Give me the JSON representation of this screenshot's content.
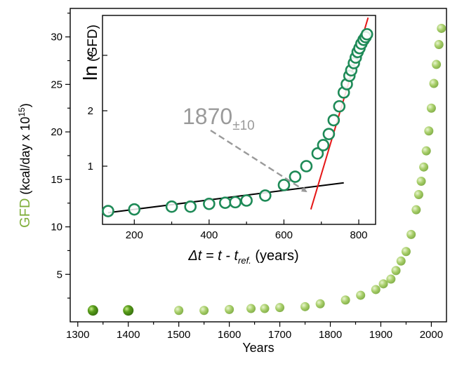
{
  "chart_data": [
    {
      "type": "scatter",
      "xlabel": "Years",
      "ylabel": {
        "prefix": "GFD",
        "rest": " (kcal/day x 10",
        "sup": "15",
        "suffix": ")"
      },
      "xlim": [
        1285,
        2030
      ],
      "ylim": [
        0,
        33
      ],
      "xticks": [
        1300,
        1400,
        1500,
        1600,
        1700,
        1800,
        1900,
        2000
      ],
      "yticks": [
        5,
        10,
        15,
        20,
        25,
        30
      ],
      "x_minor_step": 50,
      "y_minor_step": 2.5,
      "colors": {
        "highlight": "#5a9e1a",
        "points": "#a9cf6b",
        "prefix_label": "#7fae3a"
      },
      "series": [
        {
          "points": [
            [
              1330,
              1.2,
              "highlight"
            ],
            [
              1400,
              1.2,
              "highlight"
            ],
            [
              1500,
              1.2
            ],
            [
              1550,
              1.2
            ],
            [
              1600,
              1.3
            ],
            [
              1643,
              1.4
            ],
            [
              1670,
              1.4
            ],
            [
              1700,
              1.5
            ],
            [
              1750,
              1.6
            ],
            [
              1780,
              1.9
            ],
            [
              1830,
              2.3
            ],
            [
              1860,
              2.8
            ],
            [
              1890,
              3.4
            ],
            [
              1905,
              4.0
            ],
            [
              1920,
              4.5
            ],
            [
              1930,
              5.4
            ],
            [
              1940,
              6.4
            ],
            [
              1950,
              7.4
            ],
            [
              1960,
              9.2
            ],
            [
              1970,
              11.8
            ],
            [
              1975,
              13.4
            ],
            [
              1980,
              14.8
            ],
            [
              1985,
              16.3
            ],
            [
              1990,
              18.0
            ],
            [
              1995,
              20.1
            ],
            [
              2000,
              22.5
            ],
            [
              2005,
              25.1
            ],
            [
              2010,
              27.1
            ],
            [
              2015,
              29.2
            ],
            [
              2020,
              30.9
            ]
          ]
        }
      ]
    },
    {
      "type": "scatter",
      "xlabel": {
        "delta": "Δt",
        "eq": " = t - t",
        "sub": "ref.",
        "suffix": "  (years)"
      },
      "ylabel": {
        "ln": "ln",
        "rest": " (GFD)"
      },
      "xlim": [
        115,
        845
      ],
      "ylim": [
        -0.05,
        3.72
      ],
      "xticks": [
        200,
        400,
        600,
        800
      ],
      "yticks": [
        1,
        2,
        3
      ],
      "x_minor_step": 100,
      "annotation": {
        "text": "1870",
        "sub": "±10",
        "color": "#9a9a9a"
      },
      "colors": {
        "marker": "#1e8a57",
        "fit_low": "#000000",
        "fit_high": "#e51616",
        "arrow": "#9a9a9a"
      },
      "series": [
        {
          "points": [
            [
              130,
              0.19
            ],
            [
              200,
              0.22
            ],
            [
              300,
              0.27
            ],
            [
              350,
              0.27
            ],
            [
              400,
              0.32
            ],
            [
              443,
              0.34
            ],
            [
              470,
              0.35
            ],
            [
              500,
              0.38
            ],
            [
              550,
              0.47
            ],
            [
              600,
              0.66
            ],
            [
              630,
              0.81
            ],
            [
              660,
              1.0
            ],
            [
              690,
              1.23
            ],
            [
              705,
              1.38
            ],
            [
              720,
              1.58
            ],
            [
              733,
              1.83
            ],
            [
              748,
              2.08
            ],
            [
              760,
              2.33
            ],
            [
              768,
              2.48
            ],
            [
              775,
              2.63
            ],
            [
              780,
              2.73
            ],
            [
              787,
              2.86
            ],
            [
              792,
              2.96
            ],
            [
              797,
              3.06
            ],
            [
              802,
              3.13
            ],
            [
              807,
              3.21
            ],
            [
              813,
              3.28
            ],
            [
              818,
              3.33
            ],
            [
              822,
              3.38
            ]
          ]
        }
      ],
      "fit_lines": [
        {
          "name": "low",
          "x": [
            130,
            760
          ],
          "y": [
            0.16,
            0.7
          ]
        },
        {
          "name": "high",
          "x": [
            672,
            825
          ],
          "y": [
            0.22,
            3.68
          ]
        }
      ]
    }
  ]
}
